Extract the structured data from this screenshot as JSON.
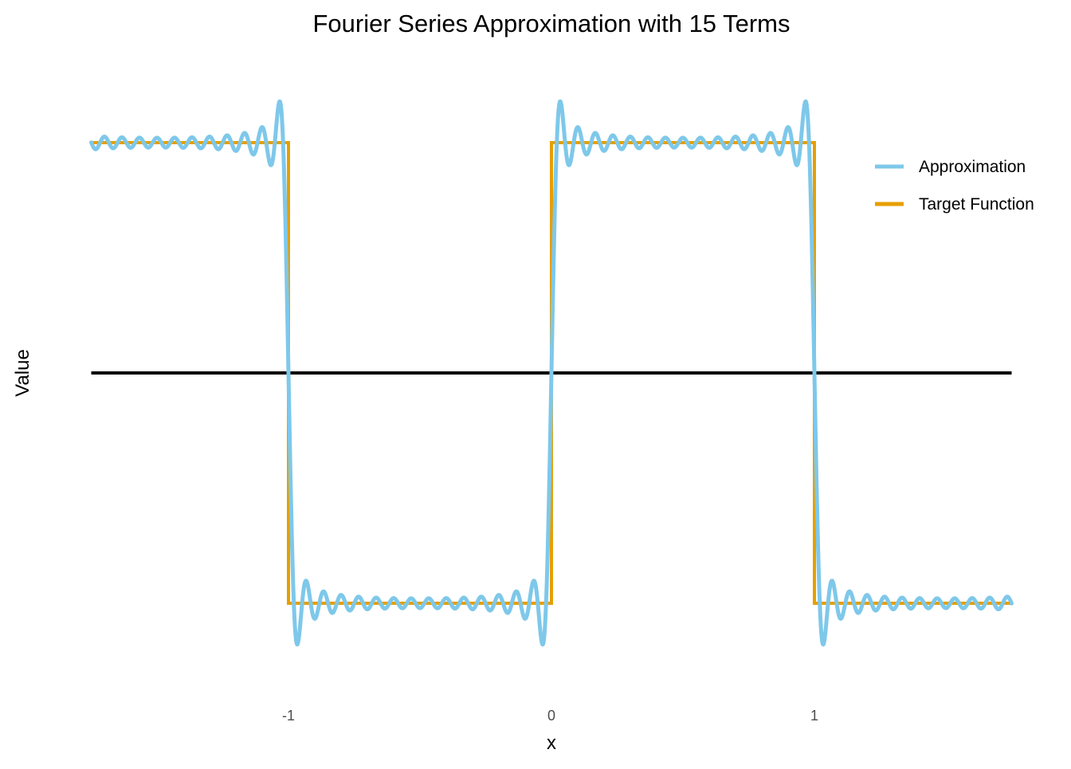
{
  "chart_data": {
    "type": "line",
    "title": "Fourier Series Approximation with 15 Terms",
    "xlabel": "x",
    "ylabel": "Value",
    "xlim": [
      -1.75,
      1.75
    ],
    "ylim": [
      -1.25,
      1.25
    ],
    "x_ticks": [
      -1,
      0,
      1
    ],
    "x_tick_labels": [
      "-1",
      "0",
      "1"
    ],
    "y_tick_labels": [],
    "grid": false,
    "legend_position": "right",
    "reference_line": {
      "y": 0,
      "color": "#000000"
    },
    "terms": 15,
    "series": [
      {
        "name": "Approximation",
        "color": "#7EC8EA",
        "kind": "fourier-square-wave-approximation",
        "period": 2,
        "n_terms": 15,
        "x_range": [
          -1.75,
          1.75
        ]
      },
      {
        "name": "Target Function",
        "color": "#E69F00",
        "kind": "square-wave",
        "points": [
          [
            -1.75,
            1
          ],
          [
            -1,
            1
          ],
          [
            -1,
            -1
          ],
          [
            0,
            -1
          ],
          [
            0,
            1
          ],
          [
            1,
            1
          ],
          [
            1,
            -1
          ],
          [
            1.75,
            -1
          ]
        ]
      }
    ]
  }
}
